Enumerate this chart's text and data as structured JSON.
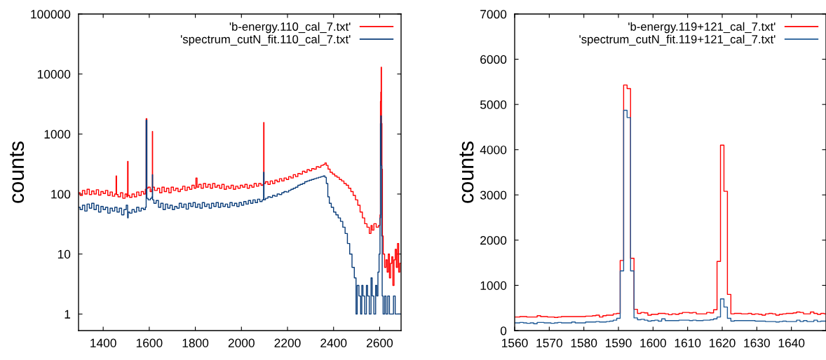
{
  "chart_data": [
    {
      "type": "step",
      "ylabel": "counts",
      "log": "y",
      "xlim": [
        1293,
        2693
      ],
      "ylim": [
        0.53,
        100000
      ],
      "xticks": [
        1400,
        1600,
        1800,
        2000,
        2200,
        2400,
        2600
      ],
      "yticks": [
        1,
        10,
        100,
        1000,
        10000,
        100000
      ],
      "grid": false,
      "legend": "top right",
      "line_style": "solid",
      "marker": "none",
      "series": [
        {
          "name": "'b-energy.110_cal_7.txt'",
          "color": "#ff0000",
          "x": [
            1295,
            1305,
            1315,
            1325,
            1335,
            1345,
            1355,
            1365,
            1375,
            1385,
            1395,
            1405,
            1415,
            1425,
            1435,
            1445,
            1455,
            1457,
            1459,
            1470,
            1480,
            1490,
            1500,
            1505,
            1507,
            1509,
            1520,
            1530,
            1540,
            1550,
            1560,
            1570,
            1580,
            1586,
            1587,
            1589,
            1590,
            1600,
            1608,
            1613,
            1614,
            1615,
            1630,
            1640,
            1650,
            1660,
            1670,
            1680,
            1690,
            1700,
            1710,
            1720,
            1730,
            1740,
            1750,
            1760,
            1770,
            1780,
            1790,
            1800,
            1805,
            1810,
            1820,
            1830,
            1840,
            1850,
            1860,
            1870,
            1880,
            1890,
            1900,
            1910,
            1920,
            1930,
            1940,
            1950,
            1960,
            1970,
            1980,
            1990,
            2000,
            2010,
            2020,
            2030,
            2040,
            2050,
            2060,
            2070,
            2080,
            2090,
            2096,
            2097,
            2099,
            2110,
            2120,
            2130,
            2140,
            2150,
            2160,
            2170,
            2180,
            2190,
            2200,
            2210,
            2220,
            2230,
            2240,
            2250,
            2260,
            2270,
            2280,
            2290,
            2300,
            2310,
            2320,
            2330,
            2340,
            2350,
            2360,
            2365,
            2372,
            2380,
            2390,
            2400,
            2410,
            2420,
            2430,
            2440,
            2450,
            2460,
            2470,
            2480,
            2490,
            2500,
            2510,
            2520,
            2530,
            2540,
            2550,
            2560,
            2565,
            2570,
            2580,
            2590,
            2600,
            2603,
            2604,
            2606,
            2607,
            2609,
            2611,
            2613,
            2618,
            2625,
            2630,
            2635,
            2640,
            2645,
            2650,
            2655,
            2660,
            2665,
            2670,
            2675,
            2680,
            2685,
            2690
          ],
          "values": [
            105,
            95,
            115,
            100,
            120,
            98,
            112,
            100,
            118,
            96,
            110,
            102,
            115,
            95,
            108,
            92,
            100,
            200,
            98,
            90,
            105,
            85,
            100,
            90,
            350,
            95,
            88,
            100,
            90,
            108,
            95,
            110,
            100,
            120,
            1800,
            1800,
            125,
            130,
            110,
            120,
            1100,
            130,
            115,
            125,
            105,
            130,
            110,
            125,
            105,
            130,
            115,
            125,
            110,
            120,
            135,
            115,
            130,
            120,
            140,
            125,
            185,
            130,
            145,
            125,
            150,
            130,
            145,
            125,
            150,
            130,
            140,
            125,
            145,
            120,
            135,
            125,
            140,
            120,
            135,
            125,
            140,
            130,
            145,
            125,
            140,
            130,
            150,
            135,
            150,
            140,
            145,
            1550,
            150,
            160,
            145,
            165,
            150,
            170,
            160,
            180,
            165,
            185,
            175,
            195,
            185,
            210,
            195,
            220,
            215,
            240,
            230,
            255,
            245,
            265,
            260,
            285,
            280,
            300,
            310,
            330,
            300,
            260,
            230,
            215,
            200,
            190,
            175,
            165,
            150,
            140,
            125,
            110,
            95,
            80,
            65,
            50,
            40,
            32,
            28,
            22,
            30,
            25,
            32,
            28,
            30,
            45,
            3500,
            5000,
            13000,
            1500,
            260,
            20,
            10,
            6,
            8,
            5,
            10,
            4,
            7,
            9,
            3,
            8,
            12,
            6,
            15,
            5,
            7
          ]
        },
        {
          "name": "'spectrum_cutN_fit.110_cal_7.txt'",
          "color": "#0a3d7a",
          "x": [
            1295,
            1305,
            1315,
            1325,
            1335,
            1345,
            1355,
            1365,
            1375,
            1385,
            1395,
            1405,
            1415,
            1425,
            1435,
            1445,
            1455,
            1465,
            1475,
            1485,
            1495,
            1505,
            1507,
            1510,
            1520,
            1530,
            1540,
            1550,
            1560,
            1570,
            1580,
            1586,
            1587,
            1589,
            1590,
            1600,
            1610,
            1613,
            1614,
            1615,
            1625,
            1635,
            1645,
            1655,
            1665,
            1675,
            1685,
            1695,
            1705,
            1715,
            1725,
            1735,
            1745,
            1755,
            1765,
            1775,
            1785,
            1795,
            1805,
            1815,
            1825,
            1835,
            1845,
            1855,
            1865,
            1875,
            1885,
            1895,
            1905,
            1915,
            1925,
            1935,
            1945,
            1955,
            1965,
            1975,
            1985,
            1995,
            2005,
            2015,
            2025,
            2035,
            2045,
            2055,
            2065,
            2075,
            2085,
            2095,
            2097,
            2099,
            2110,
            2120,
            2130,
            2140,
            2150,
            2160,
            2170,
            2180,
            2190,
            2200,
            2210,
            2220,
            2230,
            2240,
            2250,
            2260,
            2270,
            2280,
            2290,
            2300,
            2310,
            2320,
            2330,
            2340,
            2350,
            2360,
            2365,
            2372,
            2378,
            2385,
            2395,
            2405,
            2415,
            2425,
            2435,
            2445,
            2455,
            2465,
            2475,
            2485,
            2495,
            2500,
            2505,
            2515,
            2520,
            2525,
            2530,
            2540,
            2545,
            2550,
            2560,
            2565,
            2570,
            2580,
            2585,
            2590,
            2595,
            2600,
            2603,
            2604,
            2606,
            2608,
            2610,
            2612,
            2618,
            2625,
            2630,
            2640,
            2645,
            2655,
            2665,
            2670,
            2680,
            2690
          ],
          "values": [
            60,
            55,
            65,
            52,
            68,
            58,
            70,
            55,
            65,
            50,
            62,
            55,
            60,
            48,
            58,
            52,
            60,
            50,
            58,
            45,
            55,
            65,
            40,
            50,
            48,
            55,
            50,
            60,
            52,
            58,
            55,
            60,
            1700,
            1700,
            85,
            80,
            85,
            90,
            210,
            80,
            70,
            78,
            60,
            70,
            55,
            68,
            58,
            65,
            55,
            62,
            58,
            70,
            60,
            68,
            56,
            70,
            62,
            72,
            60,
            68,
            58,
            72,
            62,
            68,
            58,
            70,
            62,
            72,
            60,
            70,
            62,
            68,
            60,
            72,
            64,
            70,
            62,
            72,
            65,
            75,
            68,
            78,
            70,
            80,
            72,
            82,
            75,
            80,
            230,
            80,
            85,
            90,
            88,
            95,
            92,
            100,
            98,
            105,
            110,
            108,
            115,
            120,
            125,
            130,
            140,
            145,
            150,
            160,
            165,
            170,
            175,
            180,
            185,
            190,
            195,
            200,
            190,
            150,
            90,
            70,
            60,
            50,
            45,
            40,
            35,
            28,
            22,
            15,
            10,
            6,
            4,
            1,
            3,
            2,
            1,
            3,
            2,
            1,
            3,
            2,
            1,
            4,
            2,
            1,
            3,
            2,
            5,
            10,
            40,
            1500,
            2000,
            300,
            20,
            2,
            1,
            2,
            1,
            2,
            1,
            1,
            2,
            1,
            1,
            1
          ]
        }
      ]
    },
    {
      "type": "step",
      "ylabel": "counts",
      "xlim": [
        1560,
        1650
      ],
      "ylim": [
        0,
        7000
      ],
      "xticks": [
        1560,
        1570,
        1580,
        1590,
        1600,
        1610,
        1620,
        1630,
        1640
      ],
      "yticks": [
        0,
        1000,
        2000,
        3000,
        4000,
        5000,
        6000,
        7000
      ],
      "grid": false,
      "legend": "top right",
      "line_style": "solid",
      "marker": "none",
      "x": [
        1560,
        1561,
        1562,
        1563,
        1564,
        1565,
        1566,
        1567,
        1568,
        1569,
        1570,
        1571,
        1572,
        1573,
        1574,
        1575,
        1576,
        1577,
        1578,
        1579,
        1580,
        1581,
        1582,
        1583,
        1584,
        1585,
        1586,
        1587,
        1588,
        1589,
        1590,
        1591,
        1592,
        1593,
        1594,
        1595,
        1596,
        1597,
        1598,
        1599,
        1600,
        1601,
        1602,
        1603,
        1604,
        1605,
        1606,
        1607,
        1608,
        1609,
        1610,
        1611,
        1612,
        1613,
        1614,
        1615,
        1616,
        1617,
        1618,
        1619,
        1620,
        1621,
        1622,
        1623,
        1624,
        1625,
        1626,
        1627,
        1628,
        1629,
        1630,
        1631,
        1632,
        1633,
        1634,
        1635,
        1636,
        1637,
        1638,
        1639,
        1640,
        1641,
        1642,
        1643,
        1644,
        1645,
        1646,
        1647,
        1648,
        1649,
        1650
      ],
      "series": [
        {
          "name": "'b-energy.119+121_cal_7.txt'",
          "color": "#ff0000",
          "values": [
            300,
            300,
            310,
            310,
            300,
            300,
            300,
            330,
            310,
            310,
            300,
            300,
            290,
            300,
            310,
            310,
            310,
            310,
            310,
            310,
            310,
            320,
            320,
            330,
            340,
            300,
            330,
            340,
            340,
            370,
            380,
            1550,
            5430,
            5350,
            1600,
            470,
            380,
            400,
            390,
            340,
            360,
            360,
            380,
            380,
            370,
            350,
            370,
            360,
            380,
            400,
            400,
            390,
            400,
            370,
            370,
            370,
            400,
            390,
            460,
            1530,
            4100,
            3080,
            800,
            370,
            380,
            380,
            370,
            370,
            380,
            360,
            370,
            360,
            340,
            370,
            380,
            370,
            340,
            360,
            370,
            380,
            380,
            390,
            410,
            400,
            370,
            370,
            410,
            380,
            360,
            380,
            370
          ]
        },
        {
          "name": "'spectrum_cutN_fit.119+121_cal_7.txt'",
          "color": "#1f5a96",
          "values": [
            170,
            170,
            180,
            170,
            160,
            170,
            150,
            180,
            180,
            170,
            170,
            160,
            170,
            180,
            170,
            170,
            170,
            190,
            170,
            170,
            170,
            190,
            190,
            190,
            200,
            190,
            190,
            200,
            210,
            230,
            270,
            1320,
            4870,
            4710,
            1320,
            280,
            240,
            250,
            230,
            210,
            220,
            230,
            210,
            260,
            220,
            220,
            220,
            220,
            230,
            230,
            230,
            220,
            230,
            220,
            220,
            230,
            230,
            240,
            260,
            300,
            700,
            520,
            270,
            210,
            220,
            220,
            220,
            220,
            220,
            220,
            210,
            210,
            210,
            200,
            200,
            200,
            190,
            200,
            210,
            200,
            200,
            200,
            230,
            200,
            220,
            200,
            200,
            230,
            200,
            210,
            210
          ]
        }
      ]
    }
  ]
}
